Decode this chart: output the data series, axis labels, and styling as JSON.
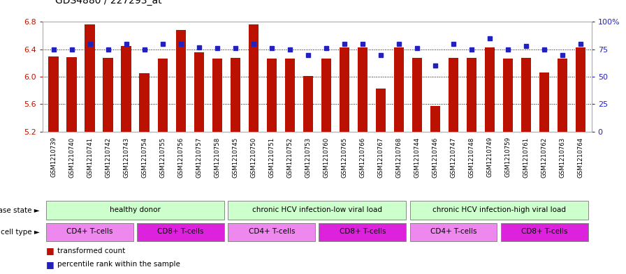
{
  "title": "GDS4880 / 227293_at",
  "samples": [
    "GSM1210739",
    "GSM1210740",
    "GSM1210741",
    "GSM1210742",
    "GSM1210743",
    "GSM1210754",
    "GSM1210755",
    "GSM1210756",
    "GSM1210757",
    "GSM1210758",
    "GSM1210745",
    "GSM1210750",
    "GSM1210751",
    "GSM1210752",
    "GSM1210753",
    "GSM1210760",
    "GSM1210765",
    "GSM1210766",
    "GSM1210767",
    "GSM1210768",
    "GSM1210744",
    "GSM1210746",
    "GSM1210747",
    "GSM1210748",
    "GSM1210749",
    "GSM1210759",
    "GSM1210761",
    "GSM1210762",
    "GSM1210763",
    "GSM1210764"
  ],
  "bar_values": [
    6.3,
    6.29,
    6.76,
    6.28,
    6.45,
    6.05,
    6.27,
    6.68,
    6.36,
    6.27,
    6.28,
    6.76,
    6.27,
    6.27,
    6.01,
    6.27,
    6.43,
    6.43,
    5.83,
    6.43,
    6.28,
    5.57,
    6.28,
    6.28,
    6.43,
    6.27,
    6.28,
    6.06,
    6.27,
    6.43
  ],
  "percentile_values": [
    75,
    75,
    80,
    75,
    80,
    75,
    80,
    80,
    77,
    76,
    76,
    80,
    76,
    75,
    70,
    76,
    80,
    80,
    70,
    80,
    76,
    60,
    80,
    75,
    85,
    75,
    78,
    75,
    70,
    80
  ],
  "ylim_left": [
    5.2,
    6.8
  ],
  "ylim_right": [
    0,
    100
  ],
  "yticks_left": [
    5.2,
    5.6,
    6.0,
    6.4,
    6.8
  ],
  "yticks_right": [
    0,
    25,
    50,
    75,
    100
  ],
  "ytick_right_labels": [
    "0",
    "25",
    "50",
    "75",
    "100%"
  ],
  "bar_color": "#bb1100",
  "marker_color": "#2222bb",
  "disease_state_groups": [
    {
      "label": "healthy donor",
      "start": 0,
      "end": 9
    },
    {
      "label": "chronic HCV infection-low viral load",
      "start": 10,
      "end": 19
    },
    {
      "label": "chronic HCV infection-high viral load",
      "start": 20,
      "end": 29
    }
  ],
  "cell_type_groups": [
    {
      "label": "CD4+ T-cells",
      "start": 0,
      "end": 4
    },
    {
      "label": "CD8+ T-cells",
      "start": 5,
      "end": 9
    },
    {
      "label": "CD4+ T-cells",
      "start": 10,
      "end": 14
    },
    {
      "label": "CD8+ T-cells",
      "start": 15,
      "end": 19
    },
    {
      "label": "CD4+ T-cells",
      "start": 20,
      "end": 24
    },
    {
      "label": "CD8+ T-cells",
      "start": 25,
      "end": 29
    }
  ],
  "disease_state_label": "disease state",
  "cell_type_label": "cell type",
  "legend_bar": "transformed count",
  "legend_marker": "percentile rank within the sample",
  "ds_color": "#ccffcc",
  "cd4_color": "#ee88ee",
  "cd8_color": "#dd22dd",
  "xtick_bg": "#d8d8d8"
}
